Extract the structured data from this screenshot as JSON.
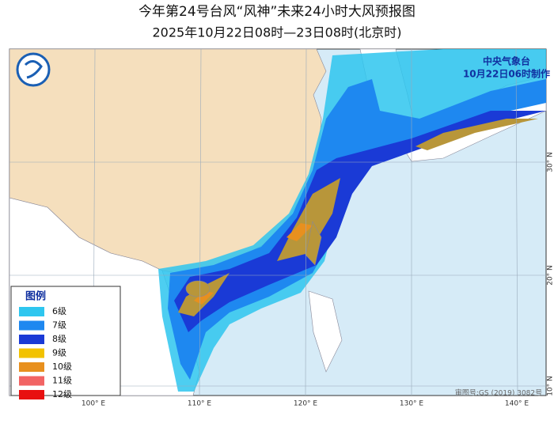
{
  "header": {
    "title": "今年第24号台风“风神”未来24小时大风预报图",
    "subtitle": "2025年10月22日08时—23日08时(北京时)"
  },
  "agency": {
    "name": "中央气象台",
    "issued": "10月22日06时制作"
  },
  "legend": {
    "title": "图例",
    "items": [
      {
        "label": "6级",
        "color": "#2ec6ef"
      },
      {
        "label": "7级",
        "color": "#1e88f0"
      },
      {
        "label": "8级",
        "color": "#1a3ad6"
      },
      {
        "label": "9级",
        "color": "#f2c200"
      },
      {
        "label": "10级",
        "color": "#e8901e"
      },
      {
        "label": "11级",
        "color": "#f26464"
      },
      {
        "label": "12级",
        "color": "#e81010"
      }
    ]
  },
  "axes": {
    "longitudes": [
      "100° E",
      "110° E",
      "120° E",
      "130° E",
      "140° E"
    ],
    "latitudes": [
      "30° N",
      "20° N",
      "10° N"
    ]
  },
  "approval": "审图号:GS (2019) 3082号"
}
